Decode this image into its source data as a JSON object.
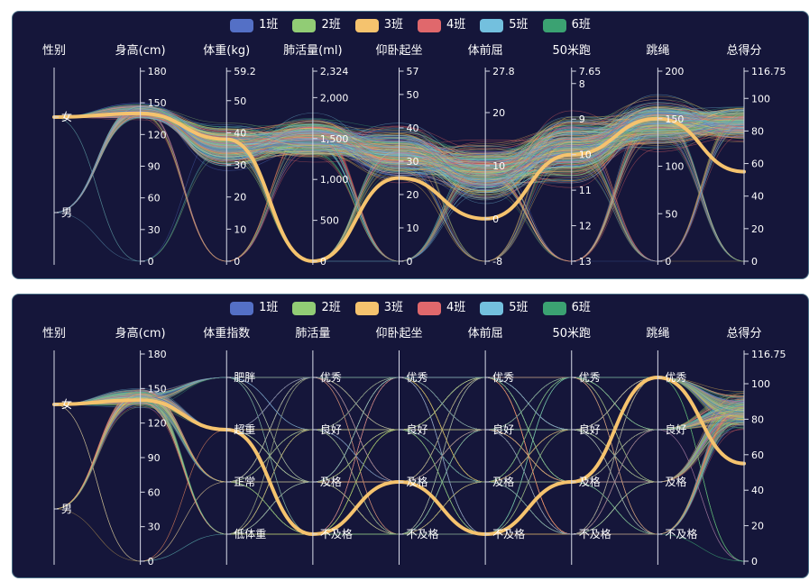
{
  "colors": {
    "background": "#15163a",
    "border": "#4a6f86",
    "axis": "#d8dbe8",
    "text": "#ffffff",
    "highlight": "#f5c36e"
  },
  "legend": [
    {
      "label": "1班",
      "color": "#5470c6"
    },
    {
      "label": "2班",
      "color": "#91cc75"
    },
    {
      "label": "3班",
      "color": "#fac858"
    },
    {
      "label": "4班",
      "color": "#ee6666"
    },
    {
      "label": "5班",
      "color": "#73c0de"
    },
    {
      "label": "6班",
      "color": "#3ba272"
    }
  ],
  "chart_data": [
    {
      "type": "parallel",
      "axes": [
        {
          "name": "性别",
          "type": "category",
          "categories": [
            "女",
            "男"
          ],
          "tick_labels": []
        },
        {
          "name": "身高(cm)",
          "type": "value",
          "range": [
            0,
            180
          ],
          "tick_labels": [
            "180",
            "150",
            "120",
            "90",
            "60",
            "30",
            "0"
          ]
        },
        {
          "name": "体重(kg)",
          "type": "value",
          "range": [
            0,
            59.2
          ],
          "tick_labels": [
            "59.2",
            "50",
            "40",
            "30",
            "20",
            "10",
            "0"
          ]
        },
        {
          "name": "肺活量(ml)",
          "type": "value",
          "range": [
            0,
            2324
          ],
          "tick_labels": [
            "2,324",
            "2,000",
            "1,500",
            "1,000",
            "500",
            "0"
          ]
        },
        {
          "name": "仰卧起坐",
          "type": "value",
          "range": [
            0,
            57
          ],
          "tick_labels": [
            "57",
            "50",
            "40",
            "30",
            "20",
            "10",
            "0"
          ]
        },
        {
          "name": "体前屈",
          "type": "value",
          "range": [
            -8,
            27.8
          ],
          "tick_labels": [
            "27.8",
            "20",
            "10",
            "0",
            "-8"
          ]
        },
        {
          "name": "50米跑",
          "type": "value",
          "inverse": true,
          "range": [
            7.65,
            13
          ],
          "tick_labels": [
            "7.65",
            "8",
            "9",
            "10",
            "11",
            "12",
            "13"
          ]
        },
        {
          "name": "跳绳",
          "type": "value",
          "range": [
            0,
            200
          ],
          "tick_labels": [
            "200",
            "150",
            "100",
            "50",
            "0"
          ]
        },
        {
          "name": "总得分",
          "type": "value",
          "range": [
            0,
            116.75
          ],
          "tick_labels": [
            "116.75",
            "100",
            "80",
            "60",
            "40",
            "20",
            "0"
          ]
        }
      ],
      "highlighted_record": {
        "series": "3班",
        "values": [
          "女",
          140,
          38,
          0,
          25,
          0,
          10,
          150,
          55
        ]
      },
      "series": [
        "1班",
        "2班",
        "3班",
        "4班",
        "5班",
        "6班"
      ]
    },
    {
      "type": "parallel",
      "axes": [
        {
          "name": "性别",
          "type": "category",
          "categories": [
            "女",
            "男"
          ],
          "tick_labels": []
        },
        {
          "name": "身高(cm)",
          "type": "value",
          "range": [
            0,
            180
          ],
          "tick_labels": [
            "180",
            "150",
            "120",
            "90",
            "60",
            "30",
            "0"
          ]
        },
        {
          "name": "体重指数",
          "type": "category",
          "categories": [
            "肥胖",
            "超重",
            "正常",
            "低体重"
          ],
          "tick_labels": []
        },
        {
          "name": "肺活量",
          "type": "category",
          "categories": [
            "优秀",
            "良好",
            "及格",
            "不及格"
          ],
          "tick_labels": []
        },
        {
          "name": "仰卧起坐",
          "type": "category",
          "categories": [
            "优秀",
            "良好",
            "及格",
            "不及格"
          ],
          "tick_labels": []
        },
        {
          "name": "体前屈",
          "type": "category",
          "categories": [
            "优秀",
            "良好",
            "及格",
            "不及格"
          ],
          "tick_labels": []
        },
        {
          "name": "50米跑",
          "type": "category",
          "categories": [
            "优秀",
            "良好",
            "及格",
            "不及格"
          ],
          "tick_labels": []
        },
        {
          "name": "跳绳",
          "type": "category",
          "categories": [
            "优秀",
            "良好",
            "及格",
            "不及格"
          ],
          "tick_labels": []
        },
        {
          "name": "总得分",
          "type": "value",
          "range": [
            0,
            116.75
          ],
          "tick_labels": [
            "116.75",
            "100",
            "80",
            "60",
            "40",
            "20",
            "0"
          ]
        }
      ],
      "highlighted_record": {
        "series": "3班",
        "values": [
          "女",
          140,
          "超重",
          "不及格",
          "及格",
          "不及格",
          "及格",
          "优秀",
          55
        ]
      },
      "series": [
        "1班",
        "2班",
        "3班",
        "4班",
        "5班",
        "6班"
      ]
    }
  ]
}
